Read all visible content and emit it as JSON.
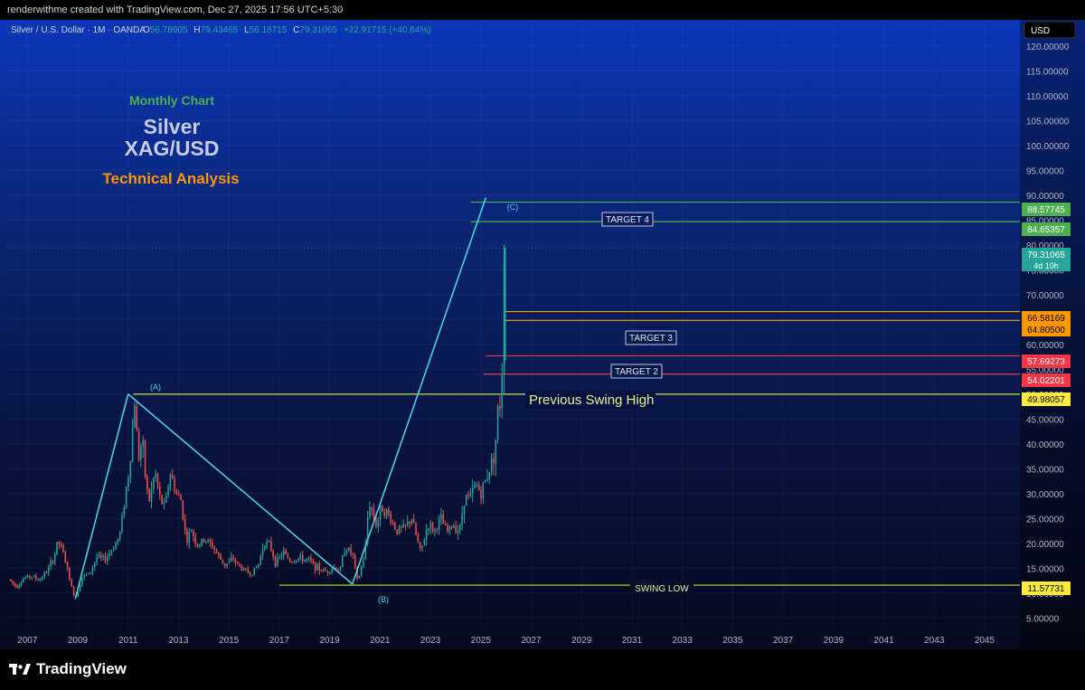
{
  "header": {
    "attribution": "renderwithme created with TradingView.com, Dec 27, 2025 17:56 UTC+5:30"
  },
  "symbol": {
    "name": "Silver / U.S. Dollar · 1M · OANDA",
    "o_label": "O",
    "o_value": "56.78905",
    "h_label": "H",
    "h_value": "79.43465",
    "l_label": "L",
    "l_value": "56.18715",
    "c_label": "C",
    "c_value": "79.31065",
    "change": "+22.91715 (+40.64%)"
  },
  "currency_button": "USD",
  "annotations": {
    "subtitle": "Monthly Chart",
    "title_line1": "Silver",
    "title_line2": "XAG/USD",
    "tagline": "Technical Analysis",
    "wave_a": "(A)",
    "wave_b": "(B)",
    "wave_c": "(C)",
    "target4": "TARGET 4",
    "target3": "TARGET 3",
    "target2": "TARGET 2",
    "prev_swing_high": "Previous Swing High",
    "swing_low": "SWING LOW"
  },
  "colors": {
    "up_candle": "#26a69a",
    "down_candle": "#ef5350",
    "target_green": "#4caf50",
    "target_orange": "#ff9800",
    "target_red": "#f23645",
    "yellow_line": "#cddc39",
    "wave_line": "#4dd0e1"
  },
  "price_labels": {
    "p88": "88.57745",
    "p84": "84.65357",
    "last": "79.31065",
    "countdown": "4d 10h",
    "p66": "66.58169",
    "p64": "64.80500",
    "p57": "57.69273",
    "p54": "54.02201",
    "p49": "49.98057",
    "p11": "11.57731"
  },
  "footer": {
    "brand": "TradingView"
  },
  "chart_data": {
    "type": "candlestick",
    "xaxis_ticks": [
      "2007",
      "2009",
      "2011",
      "2013",
      "2015",
      "2017",
      "2019",
      "2021",
      "2023",
      "2025",
      "2027",
      "2029",
      "2031",
      "2033",
      "2035",
      "2037",
      "2039",
      "2041",
      "2043",
      "2045"
    ],
    "yaxis_ticks": [
      "5.00000",
      "10.00000",
      "15.00000",
      "20.00000",
      "25.00000",
      "30.00000",
      "35.00000",
      "40.00000",
      "45.00000",
      "50.00000",
      "55.00000",
      "60.00000",
      "65.00000",
      "70.00000",
      "75.00000",
      "80.00000",
      "85.00000",
      "90.00000",
      "95.00000",
      "100.00000",
      "105.00000",
      "110.00000",
      "115.00000",
      "120.00000"
    ],
    "ylim": [
      2.5,
      122.5
    ],
    "xlim": [
      2006.2,
      2046.4
    ],
    "price_path": [
      [
        2006.3,
        12.8
      ],
      [
        2006.6,
        11.3
      ],
      [
        2006.9,
        13.0
      ],
      [
        2007.2,
        13.4
      ],
      [
        2007.5,
        12.6
      ],
      [
        2007.8,
        14.2
      ],
      [
        2008.1,
        17.2
      ],
      [
        2008.25,
        20.5
      ],
      [
        2008.5,
        17.6
      ],
      [
        2008.8,
        11.0
      ],
      [
        2008.95,
        9.0
      ],
      [
        2009.2,
        13.2
      ],
      [
        2009.5,
        13.8
      ],
      [
        2009.8,
        17.2
      ],
      [
        2010.1,
        16.7
      ],
      [
        2010.4,
        18.7
      ],
      [
        2010.7,
        21.5
      ],
      [
        2010.95,
        30.5
      ],
      [
        2011.1,
        35.5
      ],
      [
        2011.3,
        48.5
      ],
      [
        2011.45,
        37.0
      ],
      [
        2011.6,
        41.0
      ],
      [
        2011.75,
        31.5
      ],
      [
        2011.9,
        28.4
      ],
      [
        2012.1,
        34.5
      ],
      [
        2012.3,
        29.0
      ],
      [
        2012.5,
        27.1
      ],
      [
        2012.7,
        34.3
      ],
      [
        2012.95,
        30.0
      ],
      [
        2013.15,
        28.5
      ],
      [
        2013.35,
        20.3
      ],
      [
        2013.55,
        22.7
      ],
      [
        2013.8,
        19.5
      ],
      [
        2014.1,
        20.8
      ],
      [
        2014.4,
        19.4
      ],
      [
        2014.65,
        17.2
      ],
      [
        2014.9,
        15.6
      ],
      [
        2015.2,
        16.9
      ],
      [
        2015.5,
        15.1
      ],
      [
        2015.9,
        13.8
      ],
      [
        2016.2,
        15.5
      ],
      [
        2016.45,
        20.5
      ],
      [
        2016.7,
        19.2
      ],
      [
        2016.9,
        16.0
      ],
      [
        2017.2,
        18.2
      ],
      [
        2017.5,
        16.3
      ],
      [
        2017.8,
        17.0
      ],
      [
        2018.2,
        16.6
      ],
      [
        2018.6,
        14.8
      ],
      [
        2018.9,
        14.4
      ],
      [
        2019.2,
        15.2
      ],
      [
        2019.45,
        14.5
      ],
      [
        2019.65,
        19.3
      ],
      [
        2019.95,
        17.8
      ],
      [
        2020.15,
        12.0
      ],
      [
        2020.45,
        18.5
      ],
      [
        2020.6,
        28.5
      ],
      [
        2020.9,
        23.5
      ],
      [
        2021.1,
        27.5
      ],
      [
        2021.4,
        25.5
      ],
      [
        2021.7,
        22.5
      ],
      [
        2022.0,
        23.0
      ],
      [
        2022.3,
        25.0
      ],
      [
        2022.65,
        18.0
      ],
      [
        2022.95,
        23.9
      ],
      [
        2023.2,
        22.5
      ],
      [
        2023.45,
        25.0
      ],
      [
        2023.7,
        22.2
      ],
      [
        2023.95,
        23.8
      ],
      [
        2024.2,
        22.5
      ],
      [
        2024.4,
        29.5
      ],
      [
        2024.6,
        29.0
      ],
      [
        2024.85,
        32.0
      ],
      [
        2025.05,
        30.0
      ],
      [
        2025.25,
        33.0
      ],
      [
        2025.45,
        36.0
      ],
      [
        2025.6,
        38.5
      ],
      [
        2025.7,
        46.0
      ],
      [
        2025.8,
        48.0
      ],
      [
        2025.9,
        56.5
      ],
      [
        2025.95,
        79.3
      ]
    ],
    "levels": [
      {
        "price": 88.57745,
        "color": "#4caf50",
        "from": 2024.6
      },
      {
        "price": 84.65357,
        "color": "#4caf50",
        "from": 2024.6
      },
      {
        "price": 66.58169,
        "color": "#ff9800",
        "from": 2025.95
      },
      {
        "price": 64.805,
        "color": "#ff9800",
        "from": 2025.95
      },
      {
        "price": 57.69273,
        "color": "#f23645",
        "from": 2025.2
      },
      {
        "price": 54.02201,
        "color": "#f23645",
        "from": 2025.1
      },
      {
        "price": 49.98057,
        "color": "#cddc39",
        "from": 2011.2
      },
      {
        "price": 11.57731,
        "color": "#cddc39",
        "from": 2017.0
      }
    ],
    "waves": [
      [
        2008.9,
        8.8
      ],
      [
        2011.0,
        50.0
      ],
      [
        2019.9,
        11.8
      ],
      [
        2025.2,
        89.5
      ]
    ]
  }
}
